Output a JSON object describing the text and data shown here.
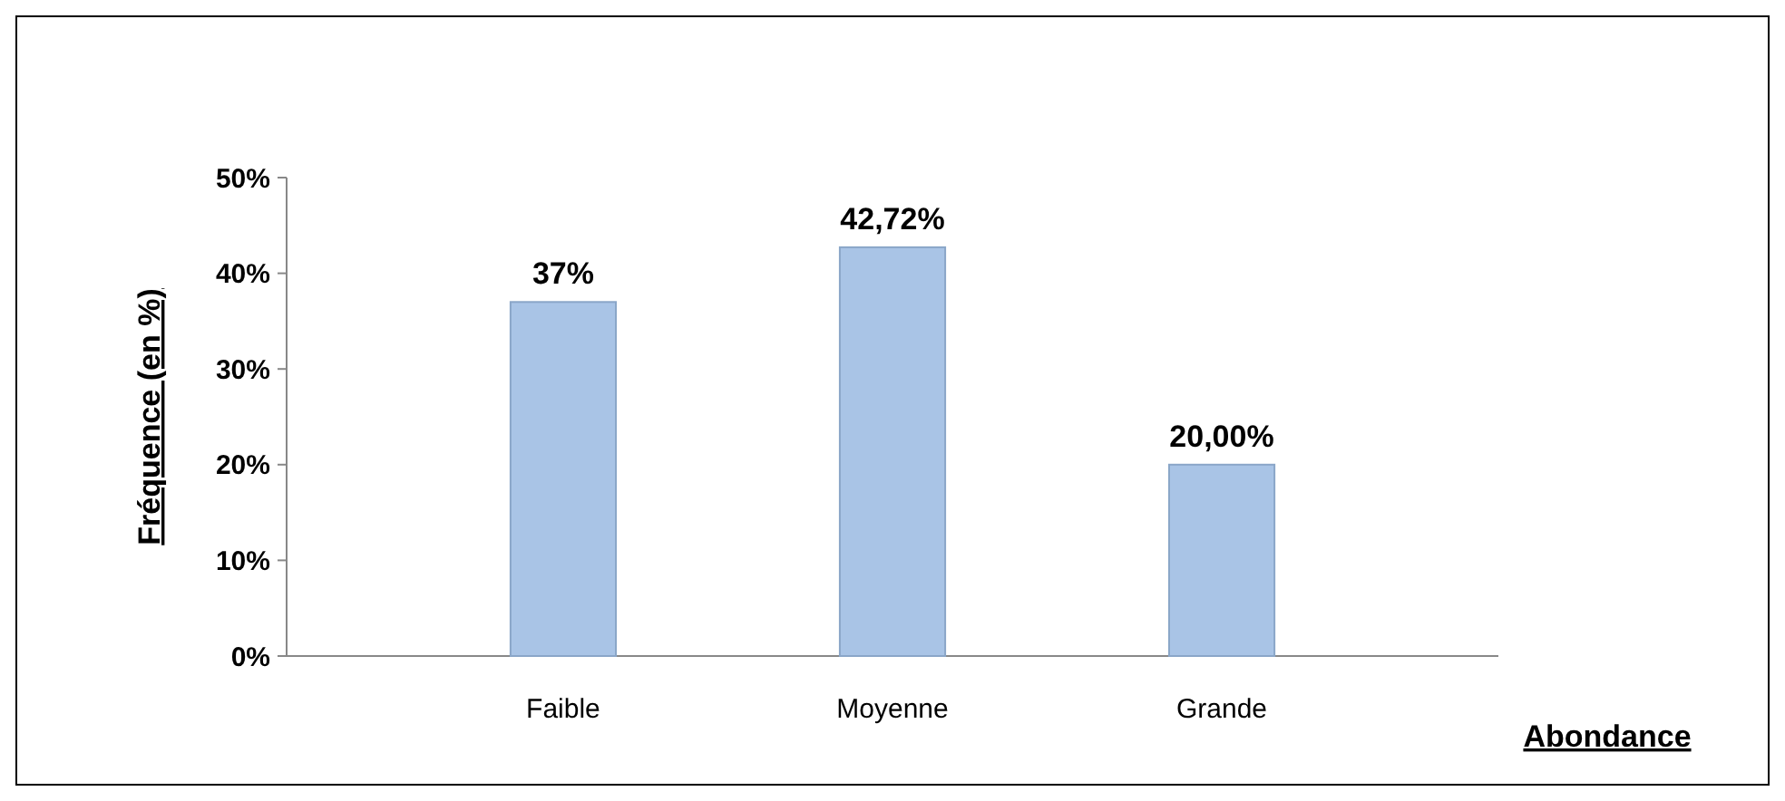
{
  "chart_data": {
    "type": "bar",
    "xlabel": "Abondance",
    "ylabel": "Fréquence (en %)",
    "categories": [
      "Faible",
      "Moyenne",
      "Grande"
    ],
    "values": [
      37,
      42.72,
      20
    ],
    "value_labels": [
      "37%",
      "42,72%",
      "20,00%"
    ],
    "color": "#a9c4e6",
    "ylim": [
      0,
      50
    ],
    "yticks": [
      {
        "value": 0,
        "label": "0%"
      },
      {
        "value": 10,
        "label": "10%"
      },
      {
        "value": 20,
        "label": "20%"
      },
      {
        "value": 30,
        "label": "30%"
      },
      {
        "value": 40,
        "label": "40%"
      },
      {
        "value": 50,
        "label": "50%"
      }
    ]
  }
}
